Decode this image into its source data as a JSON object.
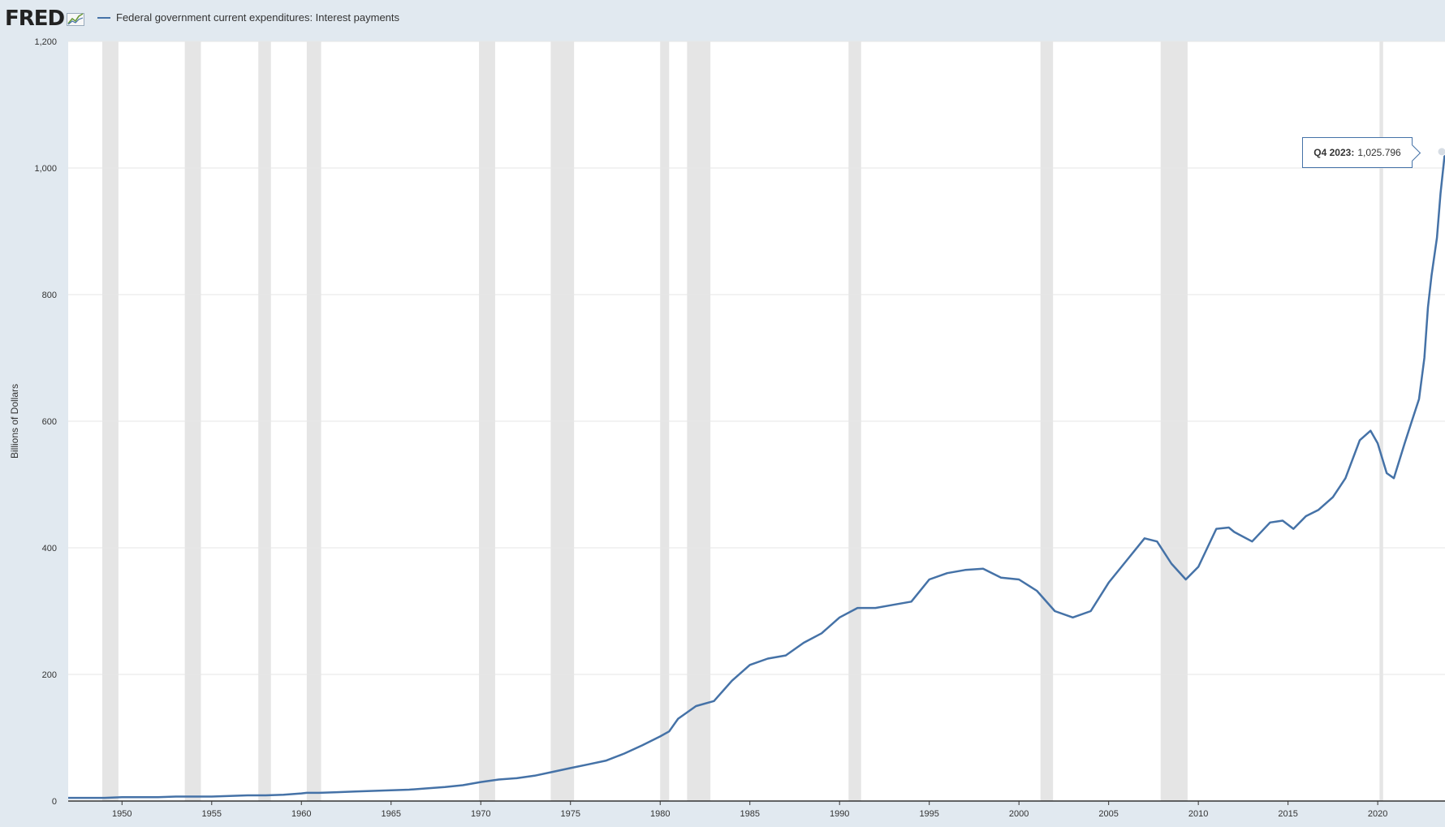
{
  "header": {
    "logo_text": "FRED",
    "legend_label": "Federal government current expenditures: Interest payments"
  },
  "tooltip": {
    "date": "Q4 2023:",
    "value": "1,025.796"
  },
  "colors": {
    "line": "#4572a7",
    "recession": "#e5e5e5",
    "background": "#e1e9f0",
    "plot_bg": "#ffffff"
  },
  "chart_data": {
    "type": "line",
    "title": "",
    "ylabel": "Billions of Dollars",
    "xlabel": "",
    "xlim": [
      1947.0,
      2023.75
    ],
    "ylim": [
      0,
      1200
    ],
    "x_ticks": [
      1950,
      1955,
      1960,
      1965,
      1970,
      1975,
      1980,
      1985,
      1990,
      1995,
      2000,
      2005,
      2010,
      2015,
      2020
    ],
    "y_ticks": [
      0,
      200,
      400,
      600,
      800,
      1000,
      1200
    ],
    "y_tick_labels": [
      "0",
      "200",
      "400",
      "600",
      "800",
      "1,000",
      "1,200"
    ],
    "grid": true,
    "recessions": [
      [
        1948.9,
        1949.8
      ],
      [
        1953.5,
        1954.4
      ],
      [
        1957.6,
        1958.3
      ],
      [
        1960.3,
        1961.1
      ],
      [
        1969.9,
        1970.8
      ],
      [
        1973.9,
        1975.2
      ],
      [
        1980.0,
        1980.5
      ],
      [
        1981.5,
        1982.8
      ],
      [
        1990.5,
        1991.2
      ],
      [
        2001.2,
        2001.9
      ],
      [
        2007.9,
        2009.4
      ],
      [
        2020.1,
        2020.3
      ]
    ],
    "series": [
      {
        "x": [
          1947,
          1948,
          1949,
          1950,
          1951,
          1952,
          1953,
          1954,
          1955,
          1956,
          1957,
          1958,
          1959,
          1960,
          1960.3,
          1961,
          1962,
          1963,
          1964,
          1965,
          1966,
          1967,
          1968,
          1969,
          1970,
          1971,
          1972,
          1973,
          1974,
          1975,
          1976,
          1977,
          1978,
          1979,
          1980,
          1980.5,
          1981,
          1982,
          1983,
          1984,
          1985,
          1986,
          1987,
          1988,
          1989,
          1990,
          1991,
          1992,
          1993,
          1994,
          1995,
          1996,
          1997,
          1998,
          1999,
          2000,
          2001,
          2002,
          2003,
          2004,
          2005,
          2006,
          2007,
          2007.7,
          2008.5,
          2009.3,
          2010,
          2011,
          2011.7,
          2012,
          2013,
          2014,
          2014.7,
          2015.3,
          2016,
          2016.7,
          2017.5,
          2018.2,
          2019.0,
          2019.6,
          2020.0,
          2020.5,
          2020.9,
          2021.5,
          2021.9,
          2022.3,
          2022.6,
          2022.8,
          2023.0,
          2023.3,
          2023.5,
          2023.75
        ],
        "values": [
          5,
          5,
          5,
          6,
          6,
          6,
          7,
          7,
          7,
          8,
          9,
          9,
          10,
          12,
          13,
          13,
          14,
          15,
          16,
          17,
          18,
          20,
          22,
          25,
          30,
          34,
          36,
          40,
          46,
          52,
          58,
          64,
          75,
          88,
          102,
          110,
          130,
          150,
          158,
          190,
          215,
          225,
          230,
          250,
          265,
          290,
          305,
          305,
          310,
          315,
          350,
          360,
          365,
          367,
          353,
          350,
          332,
          300,
          290,
          300,
          345,
          380,
          415,
          410,
          375,
          350,
          370,
          430,
          432,
          425,
          410,
          440,
          443,
          430,
          450,
          460,
          480,
          510,
          570,
          585,
          565,
          518,
          510,
          565,
          600,
          635,
          700,
          780,
          830,
          890,
          960,
          1025.796
        ]
      }
    ]
  }
}
